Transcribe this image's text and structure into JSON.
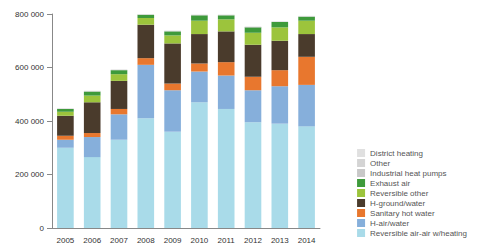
{
  "chart_data": {
    "type": "bar",
    "stacked": true,
    "grid": false,
    "legend": "lower right",
    "categories": [
      "2005",
      "2006",
      "2007",
      "2008",
      "2009",
      "2010",
      "2011",
      "2012",
      "2013",
      "2014"
    ],
    "ylim": [
      0,
      800000
    ],
    "yticks": [
      0,
      {
        "value": 200000,
        "label": "200 000"
      },
      {
        "value": 400000,
        "label": "400 000"
      },
      {
        "value": 600000,
        "label": "600 000"
      },
      {
        "value": 800000,
        "label": "800 000"
      }
    ],
    "series": [
      {
        "name": "Reversible air-air w/heating",
        "color": "#a9dbe9",
        "values": [
          300000,
          265000,
          330000,
          410000,
          360000,
          470000,
          445000,
          395000,
          390000,
          380000
        ]
      },
      {
        "name": "H-air/water",
        "color": "#86afdb",
        "values": [
          30000,
          75000,
          95000,
          200000,
          155000,
          115000,
          125000,
          120000,
          140000,
          155000
        ]
      },
      {
        "name": "Sanitary hot water",
        "color": "#e8772e",
        "values": [
          15000,
          15000,
          20000,
          25000,
          25000,
          30000,
          50000,
          50000,
          60000,
          105000
        ]
      },
      {
        "name": "H-ground/water",
        "color": "#4a3b2c",
        "values": [
          75000,
          115000,
          105000,
          125000,
          150000,
          110000,
          115000,
          120000,
          110000,
          85000
        ]
      },
      {
        "name": "Reversible other",
        "color": "#9cc43c",
        "values": [
          15000,
          25000,
          25000,
          25000,
          30000,
          50000,
          45000,
          45000,
          50000,
          50000
        ]
      },
      {
        "name": "Exhaust air",
        "color": "#3e9a3b",
        "values": [
          10000,
          15000,
          15000,
          12000,
          15000,
          20000,
          15000,
          20000,
          20000,
          15000
        ]
      },
      {
        "name": "Industrial heat pumps",
        "color": "#c8c8c8",
        "values": [
          1000,
          1000,
          1000,
          1000,
          1000,
          1000,
          1000,
          1000,
          1000,
          1000
        ]
      },
      {
        "name": "Other",
        "color": "#d4d4d4",
        "values": [
          1000,
          1000,
          1000,
          1000,
          1000,
          1000,
          1000,
          1000,
          1000,
          1000
        ]
      },
      {
        "name": "District heating",
        "color": "#e0e0e0",
        "values": [
          1000,
          1000,
          1000,
          1000,
          1000,
          1000,
          1000,
          1000,
          1000,
          1000
        ]
      }
    ]
  }
}
